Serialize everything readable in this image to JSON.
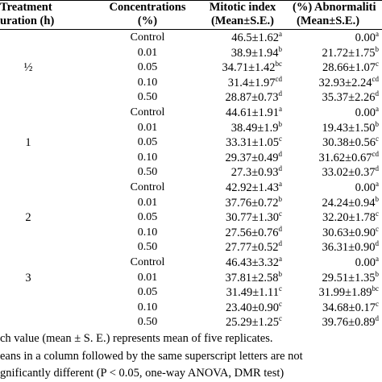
{
  "headers": {
    "treatment_line1": "Treatment",
    "treatment_line2": "uration (h)",
    "conc_line1": "Concentrations",
    "conc_line2": "(%)",
    "mi_line1": "Mitotic index",
    "mi_line2": "(Mean±S.E.)",
    "ab_line1": "(%) Abnormaliti",
    "ab_line2": "(Mean±S.E.)"
  },
  "groups": [
    {
      "label": "½",
      "row": 2
    },
    {
      "label": "1",
      "row": 7
    },
    {
      "label": "2",
      "row": 12
    },
    {
      "label": "3",
      "row": 16
    }
  ],
  "rows": [
    {
      "conc": "Control",
      "mi": "46.5±1.62",
      "mi_sup": "a",
      "ab": "0.00",
      "ab_sup": "a"
    },
    {
      "conc": "0.01",
      "mi": "38.9±1.94",
      "mi_sup": "b",
      "ab": "21.72±1.75",
      "ab_sup": "b"
    },
    {
      "conc": "0.05",
      "mi": "34.71±1.42",
      "mi_sup": "bc",
      "ab": "28.66±1.07",
      "ab_sup": "c"
    },
    {
      "conc": "0.10",
      "mi": "31.4±1.97",
      "mi_sup": "cd",
      "ab": "32.93±2.24",
      "ab_sup": "cd"
    },
    {
      "conc": "0.50",
      "mi": "28.87±0.73",
      "mi_sup": "d",
      "ab": "35.37±2.26",
      "ab_sup": "d"
    },
    {
      "conc": "Control",
      "mi": "44.61±1.91",
      "mi_sup": "a",
      "ab": "0.00",
      "ab_sup": "a"
    },
    {
      "conc": "0.01",
      "mi": "38.49±1.9",
      "mi_sup": "b",
      "ab": "19.43±1.50",
      "ab_sup": "b"
    },
    {
      "conc": "0.05",
      "mi": "33.31±1.05",
      "mi_sup": "c",
      "ab": "30.38±0.56",
      "ab_sup": "c"
    },
    {
      "conc": "0.10",
      "mi": "29.37±0.49",
      "mi_sup": "d",
      "ab": "31.62±0.67",
      "ab_sup": "cd"
    },
    {
      "conc": "0.50",
      "mi": "27.3±0.93",
      "mi_sup": "d",
      "ab": "33.02±0.37",
      "ab_sup": "d"
    },
    {
      "conc": "Control",
      "mi": "42.92±1.43",
      "mi_sup": "a",
      "ab": "0.00",
      "ab_sup": "a"
    },
    {
      "conc": "0.01",
      "mi": "37.76±0.72",
      "mi_sup": "b",
      "ab": "24.24±0.94",
      "ab_sup": "b"
    },
    {
      "conc": "0.05",
      "mi": "30.77±1.30",
      "mi_sup": "c",
      "ab": "32.20±1.78",
      "ab_sup": "c"
    },
    {
      "conc": "0.10",
      "mi": "27.56±0.76",
      "mi_sup": "d",
      "ab": "30.63±0.90",
      "ab_sup": "c"
    },
    {
      "conc": "0.50",
      "mi": "27.77±0.52",
      "mi_sup": "d",
      "ab": "36.31±0.90",
      "ab_sup": "d"
    },
    {
      "conc": "Control",
      "mi": "46.43±3.32",
      "mi_sup": "a",
      "ab": "0.00",
      "ab_sup": "a"
    },
    {
      "conc": "0.01",
      "mi": "37.81±2.58",
      "mi_sup": "b",
      "ab": "29.51±1.35",
      "ab_sup": "b"
    },
    {
      "conc": "0.05",
      "mi": "31.49±1.11",
      "mi_sup": "c",
      "ab": "31.99±1.89",
      "ab_sup": "bc"
    },
    {
      "conc": "0.10",
      "mi": "23.40±0.90",
      "mi_sup": "c",
      "ab": "34.68±0.17",
      "ab_sup": "c"
    },
    {
      "conc": "0.50",
      "mi": "25.29±1.25",
      "mi_sup": "c",
      "ab": "39.76±0.89",
      "ab_sup": "d"
    }
  ],
  "footnotes": [
    "ch value (mean ± S. E.) represents mean of five replicates.",
    "eans in a column followed by the same superscript letters are not",
    "gnificantly different (P < 0.05, one-way ANOVA, DMR test)"
  ]
}
